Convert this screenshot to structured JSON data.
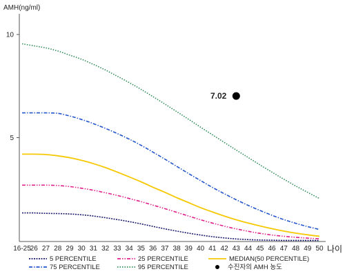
{
  "chart_data": {
    "type": "line",
    "ylabel": "AMH(ng/ml)",
    "xlabel": "나이",
    "ylim": [
      0,
      11
    ],
    "y_ticks": [
      {
        "value": 5,
        "label": "5"
      },
      {
        "value": 10,
        "label": "10"
      }
    ],
    "x_categories": [
      "16-25",
      "26",
      "27",
      "28",
      "29",
      "30",
      "31",
      "32",
      "33",
      "34",
      "35",
      "36",
      "37",
      "38",
      "39",
      "40",
      "41",
      "42",
      "43",
      "44",
      "45",
      "46",
      "47",
      "48",
      "49",
      "50"
    ],
    "series": [
      {
        "name": "5 PERCENTILE",
        "color": "#1a1a6e",
        "dash": "dotted-dense",
        "values": [
          1.35,
          1.35,
          1.33,
          1.32,
          1.3,
          1.26,
          1.2,
          1.12,
          1.03,
          0.93,
          0.82,
          0.7,
          0.58,
          0.47,
          0.37,
          0.28,
          0.2,
          0.14,
          0.09,
          0.06,
          0.04,
          0.03,
          0.02,
          0.02,
          0.02,
          0.02
        ]
      },
      {
        "name": "25 PERCENTILE",
        "color": "#e0208a",
        "dash": "dash-dot-dot",
        "values": [
          2.7,
          2.7,
          2.7,
          2.68,
          2.63,
          2.55,
          2.45,
          2.33,
          2.2,
          2.05,
          1.9,
          1.73,
          1.56,
          1.38,
          1.2,
          1.02,
          0.86,
          0.71,
          0.58,
          0.46,
          0.36,
          0.28,
          0.22,
          0.17,
          0.13,
          0.1
        ]
      },
      {
        "name": "MEDIAN(50 PERCENTILE)",
        "color": "#f5c800",
        "dash": "solid",
        "values": [
          4.2,
          4.2,
          4.18,
          4.12,
          4.03,
          3.9,
          3.74,
          3.55,
          3.33,
          3.1,
          2.86,
          2.6,
          2.35,
          2.09,
          1.85,
          1.61,
          1.4,
          1.2,
          1.02,
          0.86,
          0.72,
          0.59,
          0.47,
          0.37,
          0.29,
          0.22
        ]
      },
      {
        "name": "75 PERCENTILE",
        "color": "#2255cc",
        "dash": "dash-dot",
        "values": [
          6.2,
          6.2,
          6.2,
          6.18,
          6.05,
          5.88,
          5.68,
          5.45,
          5.2,
          4.93,
          4.63,
          4.3,
          3.96,
          3.61,
          3.26,
          2.92,
          2.59,
          2.28,
          1.99,
          1.72,
          1.47,
          1.24,
          1.03,
          0.85,
          0.69,
          0.55
        ]
      },
      {
        "name": "95 PERCENTILE",
        "color": "#2e8b57",
        "dash": "dotted",
        "values": [
          9.55,
          9.45,
          9.35,
          9.2,
          9.0,
          8.8,
          8.55,
          8.28,
          7.98,
          7.67,
          7.34,
          6.99,
          6.63,
          6.26,
          5.89,
          5.51,
          5.14,
          4.77,
          4.4,
          4.04,
          3.68,
          3.33,
          2.99,
          2.66,
          2.35,
          2.05
        ]
      }
    ],
    "marker": {
      "legend": "수진자의 AMH 농도",
      "x": "43",
      "y": 7.02,
      "label": "7.02"
    },
    "grid": false,
    "legend_position": "bottom"
  }
}
